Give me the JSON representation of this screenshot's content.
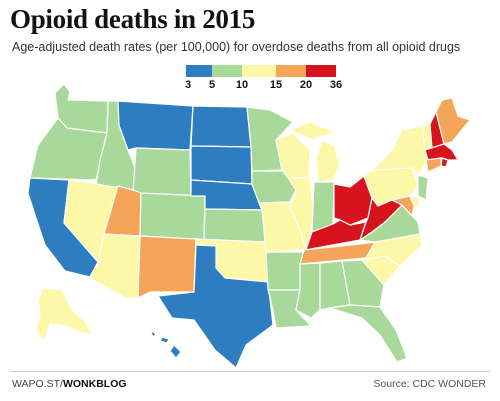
{
  "title": "Opioid deaths in 2015",
  "subtitle": "Age-adjusted death rates (per 100,000) for overdose deaths from all opioid drugs",
  "legend": {
    "bins": [
      {
        "from": 3,
        "to": 5,
        "color": "#2e7dc1"
      },
      {
        "from": 5,
        "to": 10,
        "color": "#a8d99b"
      },
      {
        "from": 10,
        "to": 15,
        "color": "#fdf7a8"
      },
      {
        "from": 15,
        "to": 20,
        "color": "#f5a55a"
      },
      {
        "from": 20,
        "to": 36,
        "color": "#d7141d"
      }
    ],
    "ticks": [
      "3",
      "5",
      "10",
      "15",
      "20",
      "36"
    ]
  },
  "states": {
    "WA": "#a8d99b",
    "OR": "#a8d99b",
    "CA": "#2e7dc1",
    "NV": "#fdf7a8",
    "ID": "#a8d99b",
    "MT": "#2e7dc1",
    "WY": "#a8d99b",
    "UT": "#f5a55a",
    "AZ": "#fdf7a8",
    "CO": "#a8d99b",
    "NM": "#f5a55a",
    "ND": "#2e7dc1",
    "SD": "#2e7dc1",
    "NE": "#2e7dc1",
    "KS": "#a8d99b",
    "OK": "#fdf7a8",
    "TX": "#2e7dc1",
    "MN": "#a8d99b",
    "IA": "#a8d99b",
    "MO": "#fdf7a8",
    "AR": "#a8d99b",
    "LA": "#a8d99b",
    "WI": "#fdf7a8",
    "IL": "#fdf7a8",
    "MI": "#fdf7a8",
    "IN": "#a8d99b",
    "OH": "#d7141d",
    "KY": "#d7141d",
    "TN": "#f5a55a",
    "MS": "#a8d99b",
    "AL": "#a8d99b",
    "GA": "#a8d99b",
    "FL": "#a8d99b",
    "SC": "#fdf7a8",
    "NC": "#fdf7a8",
    "VA": "#a8d99b",
    "WV": "#d7141d",
    "PA": "#fdf7a8",
    "NY": "#fdf7a8",
    "VT": "#fdf7a8",
    "NH": "#d7141d",
    "ME": "#f5a55a",
    "MA": "#d7141d",
    "RI": "#d7141d",
    "CT": "#f5a55a",
    "NJ": "#a8d99b",
    "DE": "#fdf7a8",
    "MD": "#f5a55a",
    "AK": "#fdf7a8",
    "HI": "#2e7dc1"
  },
  "footer": {
    "credit_prefix": "WAPO.ST/",
    "credit_bold": "WONKBLOG",
    "source": "Source: CDC WONDER"
  }
}
